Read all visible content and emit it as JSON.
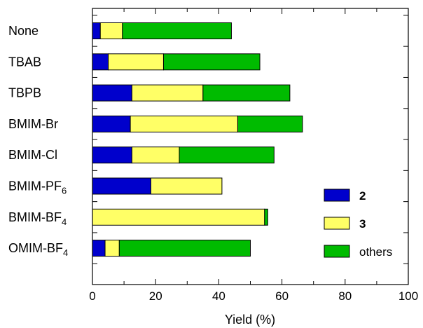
{
  "chart_data": {
    "type": "bar",
    "orientation": "horizontal",
    "stacked": true,
    "title": "",
    "xlabel": "Yield (%)",
    "ylabel": "",
    "xlim": [
      0,
      100
    ],
    "xticks": [
      0,
      20,
      40,
      60,
      80,
      100
    ],
    "grid": false,
    "legend_position": "bottom-right",
    "categories": [
      {
        "base": "None",
        "sub": ""
      },
      {
        "base": "TBAB",
        "sub": ""
      },
      {
        "base": "TBPB",
        "sub": ""
      },
      {
        "base": "BMIM-Br",
        "sub": ""
      },
      {
        "base": "BMIM-Cl",
        "sub": ""
      },
      {
        "base": "BMIM-PF",
        "sub": "6"
      },
      {
        "base": "BMIM-BF",
        "sub": "4"
      },
      {
        "base": "OMIM-BF",
        "sub": "4"
      }
    ],
    "series": [
      {
        "name": "2",
        "color": "#0000CC",
        "values": [
          2.5,
          5.0,
          12.5,
          12.0,
          12.5,
          18.5,
          0.0,
          4.0
        ]
      },
      {
        "name": "3",
        "color": "#FFFF66",
        "values": [
          7.0,
          17.5,
          22.5,
          34.0,
          15.0,
          22.5,
          54.5,
          4.5
        ]
      },
      {
        "name": "others",
        "color": "#00BB00",
        "values": [
          34.5,
          30.5,
          27.5,
          20.5,
          30.0,
          0.0,
          1.0,
          41.5
        ]
      }
    ]
  }
}
